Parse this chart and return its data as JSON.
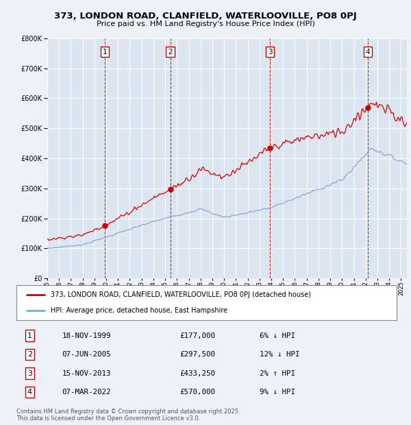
{
  "title_line1": "373, LONDON ROAD, CLANFIELD, WATERLOOVILLE, PO8 0PJ",
  "title_line2": "Price paid vs. HM Land Registry's House Price Index (HPI)",
  "background_color": "#eef2f8",
  "plot_bg_color": "#dde6f0",
  "ylim": [
    0,
    800000
  ],
  "yticks": [
    0,
    100000,
    200000,
    300000,
    400000,
    500000,
    600000,
    700000,
    800000
  ],
  "sale_dates_num": [
    1999.88,
    2005.44,
    2013.88,
    2022.18
  ],
  "sale_prices": [
    177000,
    297500,
    433250,
    570000
  ],
  "sale_labels": [
    "1",
    "2",
    "3",
    "4"
  ],
  "vline_color": "#cc0000",
  "red_line_color": "#cc0000",
  "blue_line_color": "#80aad0",
  "legend_red_label": "373, LONDON ROAD, CLANFIELD, WATERLOOVILLE, PO8 0PJ (detached house)",
  "legend_blue_label": "HPI: Average price, detached house, East Hampshire",
  "table_entries": [
    {
      "num": "1",
      "date": "18-NOV-1999",
      "price": "£177,000",
      "pct": "6% ↓ HPI"
    },
    {
      "num": "2",
      "date": "07-JUN-2005",
      "price": "£297,500",
      "pct": "12% ↓ HPI"
    },
    {
      "num": "3",
      "date": "15-NOV-2013",
      "price": "£433,250",
      "pct": "2% ↑ HPI"
    },
    {
      "num": "4",
      "date": "07-MAR-2022",
      "price": "£570,000",
      "pct": "9% ↓ HPI"
    }
  ],
  "footer": "Contains HM Land Registry data © Crown copyright and database right 2025.\nThis data is licensed under the Open Government Licence v3.0.",
  "xmin": 1995.0,
  "xmax": 2025.5
}
